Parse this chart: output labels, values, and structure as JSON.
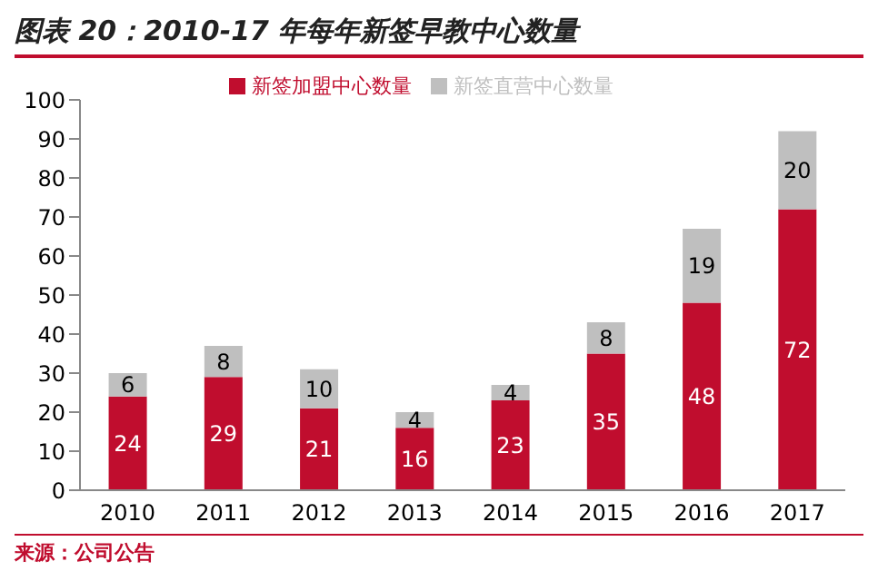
{
  "chart_data": {
    "type": "bar",
    "title": "图表 20：2010-17 年每年新签早教中心数量",
    "categories": [
      "2010",
      "2011",
      "2012",
      "2013",
      "2014",
      "2015",
      "2016",
      "2017"
    ],
    "series": [
      {
        "name": "新签加盟中心数量",
        "color": "#c00d2e",
        "values": [
          24,
          29,
          21,
          16,
          23,
          35,
          48,
          72
        ]
      },
      {
        "name": "新签直营中心数量",
        "color": "#bfbfbf",
        "values": [
          6,
          8,
          10,
          4,
          4,
          8,
          19,
          20
        ]
      }
    ],
    "stacked": true,
    "data_labels": true,
    "ylim": [
      0,
      100
    ],
    "yticks": [
      0,
      10,
      20,
      30,
      40,
      50,
      60,
      70,
      80,
      90,
      100
    ],
    "grid": false,
    "legend": "top",
    "annotations": [
      "来源：公司公告"
    ]
  }
}
